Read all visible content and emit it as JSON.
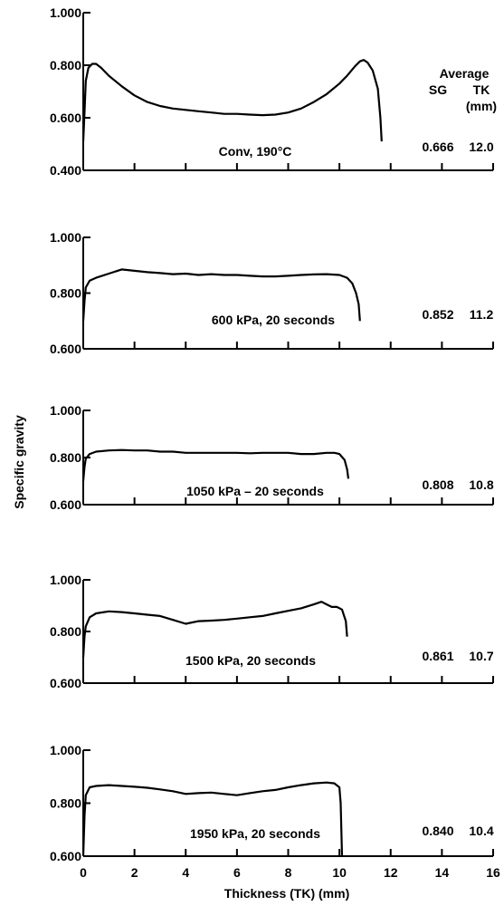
{
  "figure": {
    "x_axis_title": "Thickness (TK) (mm)",
    "y_axis_title": "Specific gravity",
    "x_tick_labels": [
      "0",
      "2",
      "4",
      "6",
      "8",
      "10",
      "12",
      "14",
      "16"
    ],
    "summary_header": {
      "title": "Average",
      "col1": "SG",
      "col2": "TK",
      "col2_unit": "(mm)"
    }
  },
  "chart_data": [
    {
      "type": "line",
      "label": "Conv, 190°C",
      "xlim": [
        0,
        16
      ],
      "ylim": [
        0.4,
        1.0
      ],
      "yticks": [
        "0.400",
        "0.600",
        "0.800",
        "1.000"
      ],
      "avg_sg": "0.666",
      "avg_tk": "12.0",
      "x": [
        0,
        0.05,
        0.1,
        0.2,
        0.35,
        0.5,
        0.7,
        1.0,
        1.5,
        2.0,
        2.5,
        3.0,
        3.5,
        4.0,
        4.5,
        5.0,
        5.5,
        6.0,
        6.5,
        7.0,
        7.5,
        8.0,
        8.5,
        9.0,
        9.5,
        10.0,
        10.3,
        10.6,
        10.8,
        10.95,
        11.1,
        11.3,
        11.5,
        11.6,
        11.65
      ],
      "y": [
        0.51,
        0.62,
        0.74,
        0.79,
        0.805,
        0.805,
        0.79,
        0.76,
        0.72,
        0.685,
        0.66,
        0.645,
        0.635,
        0.63,
        0.625,
        0.62,
        0.615,
        0.615,
        0.612,
        0.61,
        0.612,
        0.62,
        0.635,
        0.66,
        0.69,
        0.73,
        0.76,
        0.795,
        0.815,
        0.82,
        0.81,
        0.78,
        0.71,
        0.6,
        0.51
      ]
    },
    {
      "type": "line",
      "label": "600 kPa, 20 seconds",
      "xlim": [
        0,
        16
      ],
      "ylim": [
        0.6,
        1.0
      ],
      "yticks": [
        "0.600",
        "0.800",
        "1.000"
      ],
      "avg_sg": "0.852",
      "avg_tk": "11.2",
      "x": [
        0,
        0.05,
        0.1,
        0.25,
        0.5,
        1.0,
        1.5,
        2.0,
        2.5,
        3.0,
        3.5,
        4.0,
        4.5,
        5.0,
        5.5,
        6.0,
        6.5,
        7.0,
        7.5,
        8.0,
        8.5,
        9.0,
        9.5,
        10.0,
        10.3,
        10.5,
        10.65,
        10.75,
        10.8
      ],
      "y": [
        0.7,
        0.77,
        0.82,
        0.845,
        0.855,
        0.87,
        0.885,
        0.88,
        0.875,
        0.872,
        0.868,
        0.87,
        0.865,
        0.868,
        0.865,
        0.865,
        0.862,
        0.86,
        0.86,
        0.862,
        0.865,
        0.867,
        0.868,
        0.865,
        0.855,
        0.835,
        0.8,
        0.76,
        0.7
      ]
    },
    {
      "type": "line",
      "label": "1050 kPa – 20 seconds",
      "xlim": [
        0,
        16
      ],
      "ylim": [
        0.6,
        1.0
      ],
      "yticks": [
        "0.600",
        "0.800",
        "1.000"
      ],
      "avg_sg": "0.808",
      "avg_tk": "10.8",
      "x": [
        0,
        0.05,
        0.1,
        0.25,
        0.5,
        1.0,
        1.5,
        2.0,
        2.5,
        3.0,
        3.5,
        4.0,
        4.5,
        5.0,
        5.5,
        6.0,
        6.5,
        7.0,
        7.5,
        8.0,
        8.5,
        9.0,
        9.5,
        9.8,
        10.0,
        10.2,
        10.3,
        10.35
      ],
      "y": [
        0.7,
        0.76,
        0.795,
        0.815,
        0.825,
        0.83,
        0.832,
        0.83,
        0.83,
        0.825,
        0.825,
        0.82,
        0.82,
        0.82,
        0.82,
        0.82,
        0.818,
        0.82,
        0.82,
        0.82,
        0.815,
        0.815,
        0.82,
        0.82,
        0.815,
        0.79,
        0.75,
        0.71
      ]
    },
    {
      "type": "line",
      "label": "1500 kPa, 20 seconds",
      "xlim": [
        0,
        16
      ],
      "ylim": [
        0.6,
        1.0
      ],
      "yticks": [
        "0.600",
        "0.800",
        "1.000"
      ],
      "avg_sg": "0.861",
      "avg_tk": "10.7",
      "x": [
        0,
        0.05,
        0.1,
        0.25,
        0.5,
        1.0,
        1.5,
        2.0,
        2.5,
        3.0,
        3.5,
        4.0,
        4.5,
        5.0,
        5.5,
        6.0,
        6.5,
        7.0,
        7.5,
        8.0,
        8.5,
        9.0,
        9.3,
        9.5,
        9.7,
        9.9,
        10.1,
        10.25,
        10.3
      ],
      "y": [
        0.7,
        0.78,
        0.82,
        0.855,
        0.87,
        0.878,
        0.875,
        0.87,
        0.865,
        0.86,
        0.845,
        0.83,
        0.84,
        0.842,
        0.845,
        0.85,
        0.855,
        0.86,
        0.87,
        0.88,
        0.89,
        0.905,
        0.915,
        0.905,
        0.895,
        0.895,
        0.885,
        0.84,
        0.78
      ]
    },
    {
      "type": "line",
      "label": "1950 kPa,  20 seconds",
      "xlim": [
        0,
        16
      ],
      "ylim": [
        0.6,
        1.0
      ],
      "yticks": [
        "0.600",
        "0.800",
        "1.000"
      ],
      "avg_sg": "0.840",
      "avg_tk": "10.4",
      "x": [
        0,
        0.05,
        0.1,
        0.25,
        0.5,
        1.0,
        1.5,
        2.0,
        2.5,
        3.0,
        3.5,
        4.0,
        4.5,
        5.0,
        5.5,
        6.0,
        6.5,
        7.0,
        7.5,
        8.0,
        8.5,
        9.0,
        9.5,
        9.8,
        10.0,
        10.05,
        10.1
      ],
      "y": [
        0.6,
        0.75,
        0.83,
        0.86,
        0.865,
        0.868,
        0.865,
        0.862,
        0.858,
        0.852,
        0.845,
        0.835,
        0.838,
        0.84,
        0.835,
        0.83,
        0.838,
        0.845,
        0.85,
        0.86,
        0.868,
        0.875,
        0.878,
        0.875,
        0.86,
        0.8,
        0.6
      ]
    }
  ]
}
